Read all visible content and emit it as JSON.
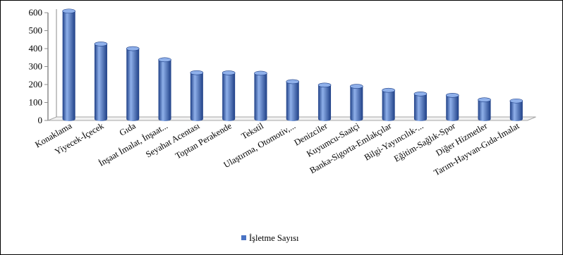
{
  "chart_data": {
    "type": "bar",
    "style": "3d-cylinder",
    "categories": [
      "Konaklama",
      "Yiyecek-İçecek",
      "Gıda",
      "İnşaat İmalat, İnşaat...",
      "Seyahat Acentası",
      "Toptan Perakende",
      "Tekstil",
      "Ulaştırma, Otomotiv,...",
      "Denizciler",
      "Kuyumcu-Saatçi",
      "Banka-Sigorta-Emlakçılar",
      "Bilgi-Yayıncılık-...",
      "Eğitim-Sağlık-Spor",
      "Diğer Hizmetler",
      "Tarım-Hayvan-Gıda-İmalat"
    ],
    "series": [
      {
        "name": "İşletme Sayısı",
        "values": [
          601,
          418,
          392,
          330,
          258,
          257,
          255,
          208,
          189,
          182,
          160,
          140,
          132,
          107,
          101
        ]
      }
    ],
    "ylim": [
      0,
      600
    ],
    "yticks": [
      "0",
      "100",
      "200",
      "300",
      "400",
      "500",
      "600"
    ],
    "grid": false,
    "legend_position": "bottom",
    "colors": {
      "bar": "#4a73c4",
      "bar_dark": "#1e3f86",
      "bar_light": "#8fb0ea",
      "axis": "#a6a6a6",
      "wall": "#8c8c8c"
    }
  }
}
